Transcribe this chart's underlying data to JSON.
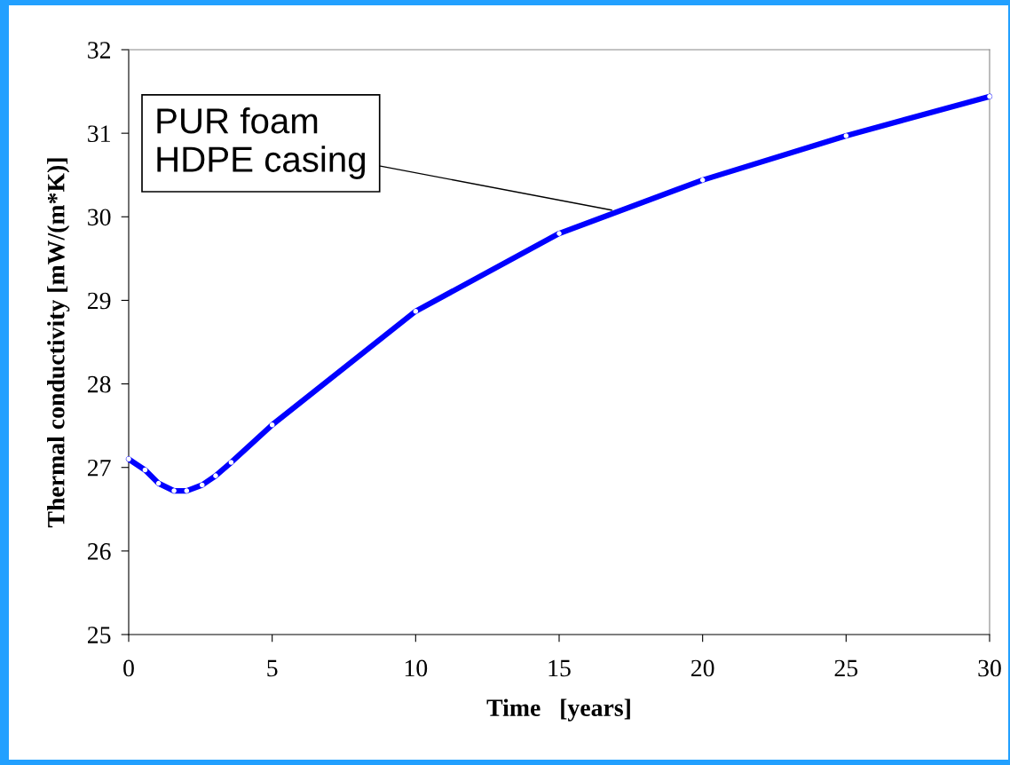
{
  "chart_data": {
    "type": "line",
    "xlabel": "Time   [years]",
    "ylabel": "Thermal conductivity [mW/(m*K)]",
    "x": [
      0,
      0.57,
      1.04,
      1.58,
      2.02,
      2.56,
      3.03,
      3.57,
      5,
      10,
      15,
      20,
      25,
      30
    ],
    "series": [
      {
        "color": "#0000ff",
        "values": [
          27.1,
          26.97,
          26.81,
          26.72,
          26.72,
          26.79,
          26.9,
          27.06,
          27.51,
          28.87,
          29.8,
          30.44,
          30.97,
          31.44
        ]
      }
    ],
    "xlim": [
      0,
      30
    ],
    "xticks": [
      0,
      5,
      10,
      15,
      20,
      25,
      30
    ],
    "ylim": [
      25,
      32
    ],
    "yticks": [
      25,
      26,
      27,
      28,
      29,
      30,
      31,
      32
    ],
    "annotations": [
      {
        "text": "PUR foam\nHDPE casing",
        "x": 16.83,
        "y": 30.08
      }
    ],
    "grid": false,
    "legend": false,
    "marker": "circle",
    "line_style": "solid"
  }
}
